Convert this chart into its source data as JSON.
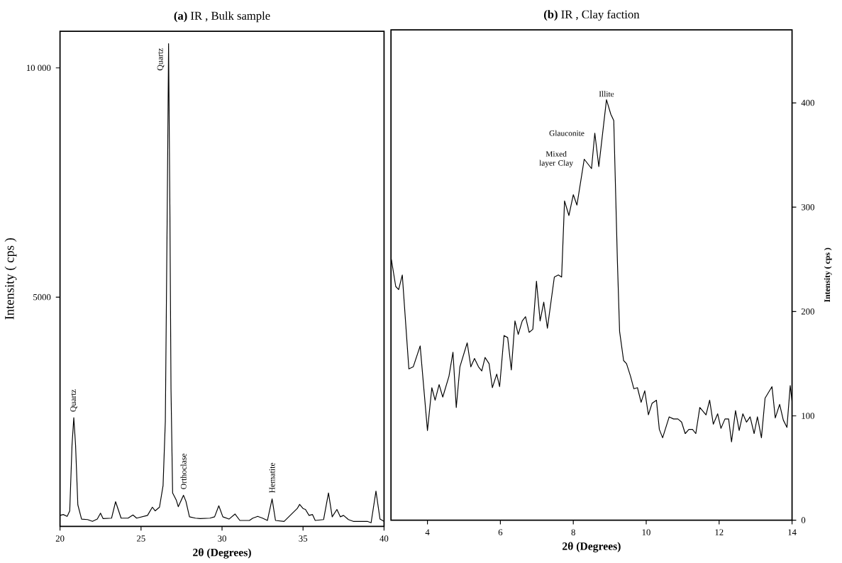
{
  "chart_data": [
    {
      "type": "line",
      "title": "**(a)**  IR , Bulk sample",
      "xlabel": "2θ (Degrees)",
      "ylabel": "Intensity ( cps )",
      "xlim": [
        20,
        40
      ],
      "ylim": [
        0,
        10800
      ],
      "xticks": [
        20,
        25,
        30,
        35,
        40
      ],
      "yticks": [
        5000,
        {
          "value": 10000,
          "label": "10 000"
        }
      ],
      "color": "#000000",
      "x": [
        20,
        20.2,
        20.44,
        20.6,
        20.74,
        20.85,
        20.96,
        21.1,
        21.33,
        21.7,
        22.0,
        22.3,
        22.5,
        22.66,
        23.18,
        23.43,
        23.77,
        24.2,
        24.5,
        24.73,
        25.4,
        25.7,
        25.87,
        26.14,
        26.36,
        26.5,
        26.62,
        26.7,
        26.78,
        26.85,
        26.95,
        27.17,
        27.3,
        27.62,
        27.77,
        27.99,
        28.36,
        28.65,
        29.25,
        29.54,
        29.8,
        30.05,
        30.43,
        30.8,
        31.1,
        31.69,
        31.9,
        32.2,
        32.5,
        32.8,
        33.09,
        33.3,
        33.83,
        34.35,
        34.64,
        34.79,
        35.0,
        35.15,
        35.37,
        35.58,
        35.75,
        36.27,
        36.57,
        36.8,
        37.09,
        37.3,
        37.5,
        37.8,
        38.1,
        38.97,
        39.2,
        39.5,
        39.75,
        40
      ],
      "values": [
        240,
        260,
        220,
        340,
        1770,
        2370,
        1770,
        470,
        160,
        150,
        110,
        160,
        290,
        170,
        180,
        540,
        180,
        180,
        250,
        180,
        240,
        420,
        340,
        420,
        890,
        2290,
        7000,
        10530,
        7000,
        3000,
        730,
        580,
        430,
        680,
        550,
        210,
        180,
        170,
        180,
        210,
        450,
        210,
        160,
        270,
        130,
        130,
        180,
        220,
        180,
        130,
        600,
        130,
        110,
        290,
        390,
        480,
        390,
        370,
        240,
        260,
        130,
        150,
        730,
        210,
        370,
        210,
        240,
        150,
        110,
        110,
        80,
        770,
        160,
        110
      ],
      "annotations": [
        {
          "text": "Quartz",
          "x": 20.85,
          "y": 2370
        },
        {
          "text": "Quartz",
          "x": 26.7,
          "y": 10530
        },
        {
          "text": "Orthoclase",
          "x": 27.62,
          "y": 680
        },
        {
          "text": "Hematite",
          "x": 33.09,
          "y": 600
        }
      ]
    },
    {
      "type": "line",
      "title": "**(b)**  IR , Clay faction",
      "xlabel": "2θ (Degrees)",
      "ylabel": "Intensity ( cps )",
      "xlim": [
        3,
        14
      ],
      "ylim": [
        0,
        470
      ],
      "xticks": [
        4,
        6,
        8,
        10,
        12,
        14
      ],
      "yticks": [
        0,
        100,
        200,
        300,
        400
      ],
      "color": "#000000",
      "x": [
        3.01,
        3.13,
        3.21,
        3.31,
        3.49,
        3.61,
        3.8,
        4.0,
        4.12,
        4.21,
        4.32,
        4.42,
        4.59,
        4.7,
        4.79,
        4.89,
        5.09,
        5.19,
        5.29,
        5.4,
        5.49,
        5.58,
        5.69,
        5.78,
        5.9,
        5.98,
        6.1,
        6.2,
        6.3,
        6.4,
        6.49,
        6.6,
        6.69,
        6.79,
        6.89,
        6.99,
        7.09,
        7.19,
        7.29,
        7.48,
        7.59,
        7.68,
        7.76,
        7.88,
        8.0,
        8.1,
        8.3,
        8.5,
        8.59,
        8.7,
        8.91,
        9.03,
        9.11,
        9.21,
        9.27,
        9.38,
        9.46,
        9.57,
        9.66,
        9.76,
        9.86,
        9.96,
        10.06,
        10.16,
        10.28,
        10.36,
        10.45,
        10.63,
        10.75,
        10.87,
        10.97,
        11.07,
        11.17,
        11.27,
        11.36,
        11.47,
        11.64,
        11.74,
        11.84,
        11.96,
        12.05,
        12.16,
        12.26,
        12.34,
        12.45,
        12.55,
        12.65,
        12.75,
        12.85,
        12.96,
        13.05,
        13.16,
        13.26,
        13.45,
        13.54,
        13.66,
        13.76,
        13.86,
        13.95,
        14.0
      ],
      "values": [
        250,
        224,
        221,
        235,
        145,
        147,
        167,
        86,
        127,
        115,
        130,
        118,
        138,
        161,
        108,
        147,
        170,
        147,
        155,
        147,
        143,
        156,
        150,
        127,
        140,
        128,
        177,
        175,
        144,
        191,
        178,
        191,
        195,
        180,
        183,
        229,
        191,
        209,
        184,
        233,
        235,
        233,
        306,
        292,
        312,
        302,
        346,
        337,
        371,
        339,
        403,
        389,
        383,
        248,
        181,
        153,
        150,
        138,
        126,
        127,
        113,
        124,
        101,
        112,
        115,
        87,
        79,
        99,
        97,
        97,
        94,
        83,
        87,
        87,
        83,
        108,
        101,
        115,
        92,
        102,
        88,
        97,
        97,
        75,
        105,
        86,
        102,
        94,
        99,
        83,
        99,
        79,
        117,
        128,
        98,
        111,
        96,
        89,
        129,
        114
      ],
      "annotations": [
        {
          "text": "Mixed layer Clay",
          "x": 8.3,
          "y": 346
        },
        {
          "text": "Glauconite",
          "x": 8.59,
          "y": 371
        },
        {
          "text": "Illite",
          "x": 8.91,
          "y": 403
        }
      ]
    }
  ]
}
